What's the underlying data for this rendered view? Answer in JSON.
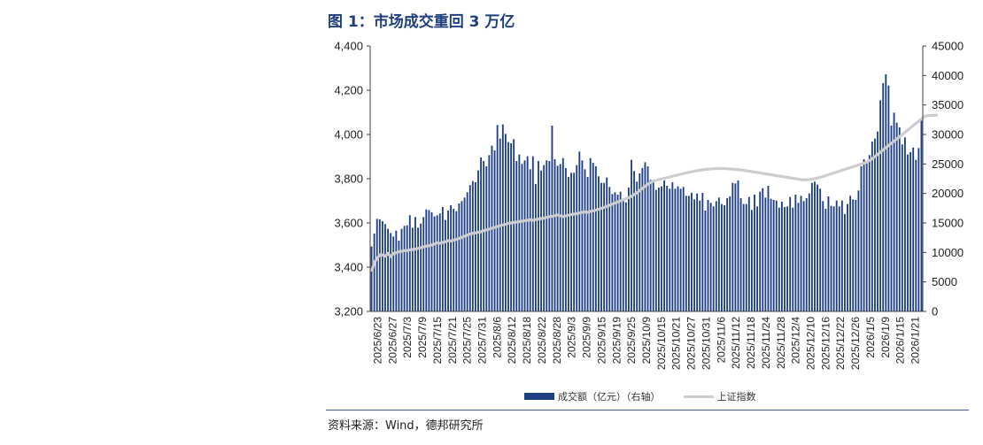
{
  "figure": {
    "title": "图 1：市场成交重回 3 万亿",
    "source": "资料来源：Wind，德邦研究所"
  },
  "colors": {
    "bar": "#1f3f84",
    "line": "#cdcdcd",
    "axis": "#444444",
    "divider": "#3d5a91"
  },
  "chart_data": {
    "type": "bar",
    "title": "",
    "grid": false,
    "legend_position": "bottom",
    "x_tick_labels": [
      "2025/6/23",
      "2025/6/27",
      "2025/7/3",
      "2025/7/9",
      "2025/7/15",
      "2025/7/21",
      "2025/7/25",
      "2025/7/31",
      "2025/8/6",
      "2025/8/12",
      "2025/8/18",
      "2025/8/22",
      "2025/8/28",
      "2025/9/3",
      "2025/9/9",
      "2025/9/15",
      "2025/9/19",
      "2025/9/25",
      "2025/10/9",
      "2025/10/15",
      "2025/10/21",
      "2025/10/27",
      "2025/10/31",
      "2025/11/6",
      "2025/11/12",
      "2025/11/18",
      "2025/11/24",
      "2025/11/28",
      "2025/12/4",
      "2025/12/10",
      "2025/12/16",
      "2025/12/22",
      "2025/12/26",
      "2026/1/5",
      "2026/1/9",
      "2026/1/15",
      "2026/1/21"
    ],
    "left_axis": {
      "label": "",
      "min": 3200,
      "max": 4400,
      "ticks": [
        "3,200",
        "3,400",
        "3,600",
        "3,800",
        "4,000",
        "4,200",
        "4,400"
      ]
    },
    "right_axis": {
      "label": "",
      "min": 0,
      "max": 45000,
      "ticks": [
        "0",
        "5000",
        "10000",
        "15000",
        "20000",
        "25000",
        "30000",
        "35000",
        "40000",
        "45000"
      ]
    },
    "series": [
      {
        "name": "成交额（亿元）（右轴）",
        "type": "bar",
        "axis": "right",
        "values": [
          11000,
          13200,
          15700,
          15600,
          15300,
          14800,
          14000,
          13300,
          12700,
          13700,
          12000,
          14000,
          14500,
          14600,
          16300,
          14200,
          16000,
          14200,
          14900,
          16000,
          17300,
          17200,
          16800,
          16100,
          16300,
          16600,
          17700,
          15500,
          17100,
          18000,
          17400,
          17000,
          18300,
          18700,
          19300,
          20200,
          21400,
          22100,
          21900,
          23900,
          26100,
          25500,
          24600,
          26500,
          28100,
          27300,
          31600,
          29300,
          31700,
          30100,
          28700,
          28500,
          29200,
          25500,
          26600,
          25000,
          25600,
          26300,
          24100,
          26300,
          21600,
          25500,
          23900,
          24800,
          25600,
          25500,
          31500,
          25800,
          24700,
          25000,
          26000,
          24300,
          22800,
          23500,
          23500,
          24800,
          27100,
          25600,
          24100,
          22800,
          26000,
          25200,
          24600,
          22900,
          21800,
          21800,
          22700,
          21100,
          19900,
          20200,
          19800,
          20300,
          18700,
          18500,
          21000,
          25700,
          23800,
          22000,
          23400,
          24300,
          25300,
          24600,
          22300,
          22100,
          20600,
          21000,
          21200,
          22200,
          21300,
          20800,
          21900,
          20800,
          21200,
          20800,
          21100,
          19600,
          19600,
          20100,
          19000,
          20000,
          18800,
          20100,
          17100,
          18900,
          18400,
          17800,
          18700,
          19300,
          18200,
          18000,
          19200,
          19500,
          21800,
          21700,
          22200,
          19200,
          18200,
          18200,
          19400,
          17200,
          19800,
          17800,
          20300,
          20900,
          19300,
          21300,
          19100,
          18900,
          18800,
          17600,
          18600,
          17700,
          17800,
          19400,
          17600,
          19800,
          18400,
          19600,
          18700,
          19200,
          20000,
          21800,
          22000,
          21500,
          20800,
          18700,
          17400,
          19500,
          17900,
          17800,
          18800,
          17800,
          18800,
          16500,
          18200,
          19600,
          19000,
          18900,
          20500,
          24600,
          25800,
          25500,
          26500,
          28800,
          29300,
          30500,
          35800,
          38700,
          40200,
          38300,
          31500,
          33700,
          32000,
          31200,
          28300,
          29500,
          26600,
          27000,
          27800,
          25700,
          27700,
          32500
        ]
      },
      {
        "name": "上证指数",
        "type": "line",
        "axis": "left",
        "values": [
          3380,
          3420,
          3440,
          3455,
          3455,
          3450,
          3462,
          3448,
          3462,
          3465,
          3470,
          3472,
          3475,
          3475,
          3478,
          3480,
          3482,
          3485,
          3488,
          3492,
          3495,
          3497,
          3500,
          3505,
          3510,
          3508,
          3512,
          3515,
          3520,
          3518,
          3522,
          3525,
          3530,
          3535,
          3540,
          3545,
          3550,
          3553,
          3555,
          3558,
          3560,
          3565,
          3568,
          3572,
          3576,
          3580,
          3584,
          3588,
          3591,
          3594,
          3598,
          3600,
          3602,
          3604,
          3606,
          3608,
          3610,
          3612,
          3614,
          3612,
          3615,
          3618,
          3620,
          3622,
          3625,
          3628,
          3630,
          3633,
          3636,
          3632,
          3629,
          3632,
          3635,
          3638,
          3640,
          3642,
          3645,
          3648,
          3650,
          3648,
          3652,
          3655,
          3658,
          3662,
          3666,
          3670,
          3675,
          3680,
          3685,
          3690,
          3695,
          3700,
          3705,
          3710,
          3715,
          3720,
          3728,
          3736,
          3746,
          3756,
          3766,
          3775,
          3783,
          3789,
          3793,
          3796,
          3799,
          3802,
          3805,
          3808,
          3811,
          3814,
          3817,
          3820,
          3823,
          3826,
          3829,
          3831,
          3834,
          3836,
          3838,
          3840,
          3842,
          3843,
          3844,
          3845,
          3846,
          3846,
          3846,
          3846,
          3845,
          3844,
          3843,
          3842,
          3841,
          3840,
          3838,
          3836,
          3834,
          3832,
          3830,
          3828,
          3826,
          3824,
          3822,
          3820,
          3818,
          3816,
          3814,
          3812,
          3810,
          3808,
          3806,
          3804,
          3802,
          3800,
          3798,
          3796,
          3795,
          3795,
          3796,
          3798,
          3800,
          3803,
          3806,
          3810,
          3814,
          3818,
          3822,
          3826,
          3830,
          3834,
          3838,
          3842,
          3846,
          3850,
          3854,
          3858,
          3862,
          3866,
          3870,
          3875,
          3882,
          3890,
          3900,
          3910,
          3920,
          3930,
          3940,
          3950,
          3960,
          3970,
          3980,
          3990,
          4000,
          4010,
          4020,
          4030,
          4040,
          4050,
          4060,
          4070,
          4080,
          4085,
          4086,
          4086,
          4087,
          4088
        ]
      }
    ]
  },
  "legend": {
    "bar_label": "成交额（亿元）（右轴）",
    "line_label": "上证指数"
  }
}
